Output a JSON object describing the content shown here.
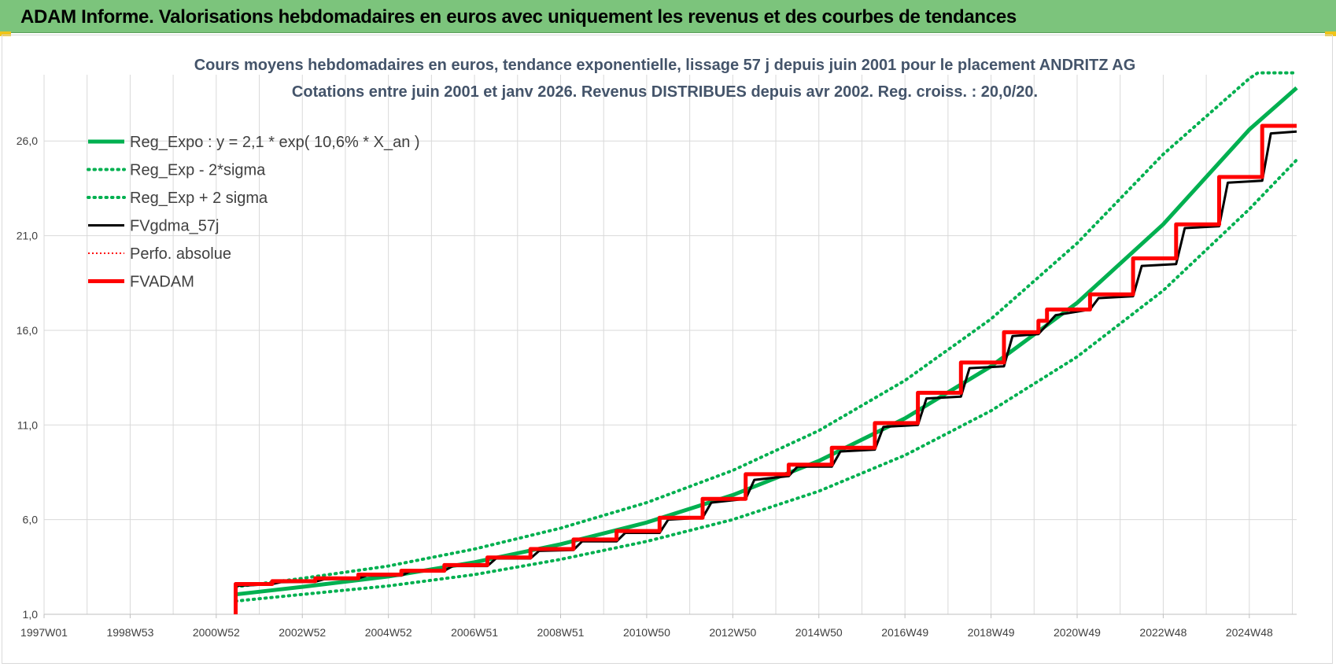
{
  "banner": {
    "title": "ADAM Informe. Valorisations hebdomadaires en euros avec uniquement les revenus et des courbes de tendances"
  },
  "colors": {
    "banner_bg": "#7cc47c",
    "reg_expo": "#00b050",
    "fv_gdma": "#000000",
    "perfo": "#ff0000",
    "fvadam": "#ff0000",
    "title_text": "#44546a",
    "grid": "#d9d9d9"
  },
  "chart_data": {
    "type": "line",
    "title_lines": [
      "Cours moyens hebdomadaires en euros, tendance exponentielle, lissage 57 j depuis juin 2001 pour le placement ANDRITZ AG",
      "Cotations entre juin 2001 et janv 2026. Revenus DISTRIBUES depuis avr 2002. Reg. croiss. : 20,0/20."
    ],
    "xlabel": "",
    "ylabel": "",
    "xlim": [
      1997.0,
      2026.1
    ],
    "ylim": [
      1.0,
      29.5
    ],
    "x_ticks": [
      {
        "label": "1997W01",
        "x": 1997.0
      },
      {
        "label": "1998W53",
        "x": 1999.0
      },
      {
        "label": "2000W52",
        "x": 2001.0
      },
      {
        "label": "2002W52",
        "x": 2003.0
      },
      {
        "label": "2004W52",
        "x": 2005.0
      },
      {
        "label": "2006W51",
        "x": 2007.0
      },
      {
        "label": "2008W51",
        "x": 2009.0
      },
      {
        "label": "2010W50",
        "x": 2011.0
      },
      {
        "label": "2012W50",
        "x": 2013.0
      },
      {
        "label": "2014W50",
        "x": 2015.0
      },
      {
        "label": "2016W49",
        "x": 2017.0
      },
      {
        "label": "2018W49",
        "x": 2019.0
      },
      {
        "label": "2020W49",
        "x": 2021.0
      },
      {
        "label": "2022W48",
        "x": 2023.0
      },
      {
        "label": "2024W48",
        "x": 2025.0
      }
    ],
    "y_ticks": [
      {
        "label": "1,0",
        "y": 1.0
      },
      {
        "label": "6,0",
        "y": 6.0
      },
      {
        "label": "11,0",
        "y": 11.0
      },
      {
        "label": "16,0",
        "y": 16.0
      },
      {
        "label": "21,0",
        "y": 21.0
      },
      {
        "label": "26,0",
        "y": 26.0
      }
    ],
    "grid": true,
    "legend_position": "top-left",
    "legend": [
      {
        "name": "Reg_Expo : y = 2,1 * exp( 10,6% *  X_an )",
        "style": "solid-thick",
        "color": "#00b050"
      },
      {
        "name": "Reg_Exp - 2*sigma",
        "style": "dotted",
        "color": "#00b050"
      },
      {
        "name": "Reg_Exp + 2 sigma",
        "style": "dotted",
        "color": "#00b050"
      },
      {
        "name": "FVgdma_57j",
        "style": "solid",
        "color": "#000000"
      },
      {
        "name": "Perfo. absolue",
        "style": "dotted-thin",
        "color": "#ff0000"
      },
      {
        "name": "FVADAM",
        "style": "solid-thick",
        "color": "#ff0000"
      }
    ],
    "series": [
      {
        "name": "Reg_Expo : y = 2,1 * exp( 10,6% *  X_an )",
        "x": [
          2001.45,
          2003,
          2005,
          2007,
          2009,
          2011,
          2013,
          2015,
          2017,
          2019,
          2021,
          2023,
          2025,
          2026.1
        ],
        "y": [
          2.05,
          2.45,
          3.0,
          3.75,
          4.7,
          5.85,
          7.3,
          9.1,
          11.35,
          14.1,
          17.45,
          21.6,
          26.6,
          28.8
        ]
      },
      {
        "name": "Reg_Exp - 2*sigma",
        "x": [
          2001.45,
          2003,
          2005,
          2007,
          2009,
          2011,
          2013,
          2015,
          2017,
          2019,
          2021,
          2023,
          2025,
          2026.1
        ],
        "y": [
          1.7,
          2.05,
          2.5,
          3.1,
          3.9,
          4.85,
          6.0,
          7.5,
          9.4,
          11.75,
          14.6,
          18.1,
          22.4,
          25.0
        ]
      },
      {
        "name": "Reg_Exp + 2 sigma",
        "x": [
          2001.45,
          2003,
          2005,
          2007,
          2009,
          2011,
          2013,
          2015,
          2017,
          2019,
          2021,
          2023,
          2025,
          2025.2,
          2026.1
        ],
        "y": [
          2.45,
          2.9,
          3.55,
          4.45,
          5.55,
          6.9,
          8.6,
          10.7,
          13.35,
          16.6,
          20.6,
          25.3,
          29.3,
          29.6,
          29.6
        ]
      },
      {
        "name": "FVgdma_57j",
        "x": [
          2001.45,
          2001.45,
          2001.9,
          2002.3,
          2002.5,
          2003.3,
          2003.5,
          2004.3,
          2004.5,
          2005.3,
          2005.5,
          2006.3,
          2006.5,
          2007.3,
          2007.5,
          2008.3,
          2008.5,
          2009.3,
          2009.5,
          2010.3,
          2010.5,
          2011.3,
          2011.5,
          2012.3,
          2012.5,
          2013.3,
          2013.5,
          2014.3,
          2014.5,
          2015.3,
          2015.5,
          2016.3,
          2016.5,
          2017.3,
          2017.5,
          2018.3,
          2018.5,
          2019.3,
          2019.5,
          2020.1,
          2020.3,
          2020.5,
          2021.3,
          2021.5,
          2022.3,
          2022.5,
          2023.3,
          2023.5,
          2024.3,
          2024.5,
          2025.3,
          2025.5,
          2026.1
        ],
        "y": [
          1.0,
          2.5,
          2.55,
          2.6,
          2.7,
          2.72,
          2.85,
          2.9,
          3.05,
          3.05,
          3.25,
          3.3,
          3.55,
          3.55,
          3.95,
          3.95,
          4.35,
          4.4,
          4.85,
          4.85,
          5.3,
          5.3,
          6.0,
          6.1,
          6.9,
          7.1,
          8.1,
          8.3,
          8.8,
          8.8,
          9.6,
          9.7,
          10.9,
          11.0,
          12.4,
          12.5,
          14.0,
          14.1,
          15.7,
          15.8,
          16.3,
          16.8,
          17.1,
          17.7,
          17.8,
          19.4,
          19.5,
          21.4,
          21.5,
          23.8,
          23.9,
          26.4,
          26.5
        ]
      },
      {
        "name": "FVADAM",
        "x": [
          2001.45,
          2001.45,
          2002.3,
          2002.3,
          2003.3,
          2003.3,
          2004.3,
          2004.3,
          2005.3,
          2005.3,
          2006.3,
          2006.3,
          2007.3,
          2007.3,
          2008.3,
          2008.3,
          2009.3,
          2009.3,
          2010.3,
          2010.3,
          2011.3,
          2011.3,
          2012.3,
          2012.3,
          2013.3,
          2013.3,
          2014.3,
          2014.3,
          2015.3,
          2015.3,
          2016.3,
          2016.3,
          2017.3,
          2017.3,
          2018.3,
          2018.3,
          2019.3,
          2019.3,
          2020.1,
          2020.1,
          2020.3,
          2020.3,
          2021.3,
          2021.3,
          2022.3,
          2022.3,
          2023.3,
          2023.3,
          2024.3,
          2024.3,
          2025.3,
          2025.3,
          2026.1
        ],
        "y": [
          1.0,
          2.6,
          2.6,
          2.75,
          2.75,
          2.9,
          2.9,
          3.1,
          3.1,
          3.3,
          3.3,
          3.6,
          3.6,
          4.0,
          4.0,
          4.45,
          4.45,
          4.95,
          4.95,
          5.4,
          5.4,
          6.1,
          6.1,
          7.1,
          7.1,
          8.4,
          8.4,
          8.9,
          8.9,
          9.8,
          9.8,
          11.1,
          11.1,
          12.7,
          12.7,
          14.3,
          14.3,
          15.9,
          15.9,
          16.5,
          16.5,
          17.1,
          17.1,
          17.9,
          17.9,
          19.8,
          19.8,
          21.6,
          21.6,
          24.1,
          24.1,
          26.8,
          26.8
        ]
      }
    ]
  }
}
